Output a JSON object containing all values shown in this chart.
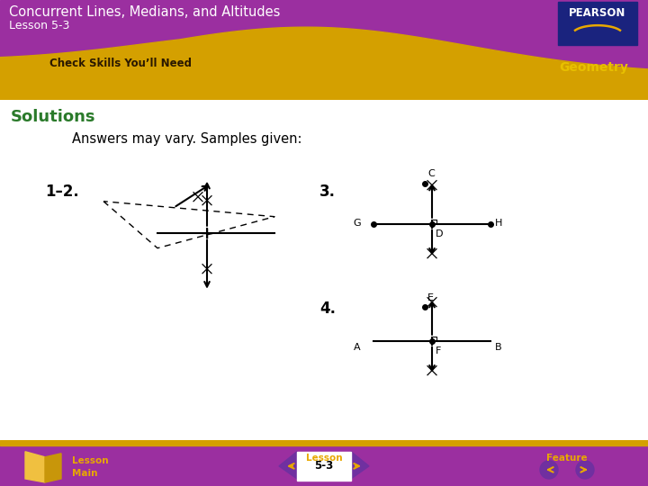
{
  "title": "Concurrent Lines, Medians, and Altitudes",
  "lesson": "Lesson 5-3",
  "subtitle": "Check Skills You’ll Need",
  "subject": "Geometry",
  "header_bg": "#9b2fa0",
  "header_wave_color": "#d4a000",
  "solutions_color": "#2a7a2a",
  "body_bg": "#ffffff",
  "footer_bg": "#9b2fa0",
  "footer_text_color": "#e8a800",
  "pearson_box_color": "#1a237e",
  "answers_text": "Answers may vary. Samples given:",
  "label_12": "1–2.",
  "label_3": "3.",
  "label_4": "4."
}
